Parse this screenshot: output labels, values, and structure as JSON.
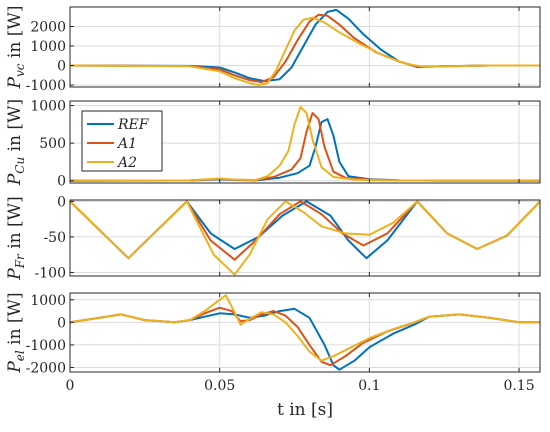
{
  "colors": {
    "REF": "#0072BD",
    "A1": "#D95319",
    "A2": "#EDB120"
  },
  "chart_data": {
    "type": "line",
    "grid": true,
    "shared_x": {
      "label": "t in [s]",
      "lim": [
        0,
        0.157
      ],
      "ticks": [
        0,
        0.05,
        0.1,
        0.15
      ],
      "tick_labels": [
        "0",
        "0.05",
        "0.1",
        "0.15"
      ]
    },
    "legend": {
      "panel": 1,
      "placement": "top-left",
      "entries": [
        "REF",
        "A1",
        "A2"
      ]
    },
    "panels": [
      {
        "ylabel": "P_vc in [W]",
        "ylim": [
          -1100,
          3000
        ],
        "yticks": [
          -1000,
          0,
          1000,
          2000
        ],
        "ytick_labels": [
          "-1000",
          "0",
          "1000",
          "2000"
        ],
        "series": [
          {
            "name": "REF",
            "x": [
              0,
              0.04,
              0.05,
              0.055,
              0.06,
              0.065,
              0.07,
              0.074,
              0.078,
              0.082,
              0.086,
              0.089,
              0.093,
              0.098,
              0.104,
              0.11,
              0.116,
              0.125,
              0.14,
              0.157
            ],
            "y": [
              0,
              -20,
              -100,
              -350,
              -650,
              -800,
              -700,
              -100,
              1000,
              2100,
              2750,
              2850,
              2400,
              1600,
              800,
              200,
              -80,
              -40,
              0,
              0
            ]
          },
          {
            "name": "A1",
            "x": [
              0,
              0.04,
              0.05,
              0.055,
              0.06,
              0.064,
              0.068,
              0.072,
              0.076,
              0.08,
              0.083,
              0.086,
              0.09,
              0.095,
              0.102,
              0.11,
              0.116,
              0.125,
              0.14,
              0.157
            ],
            "y": [
              0,
              -30,
              -200,
              -500,
              -750,
              -850,
              -600,
              200,
              1300,
              2250,
              2600,
              2550,
              2100,
              1400,
              700,
              200,
              -60,
              -40,
              0,
              0
            ]
          },
          {
            "name": "A2",
            "x": [
              0,
              0.04,
              0.05,
              0.055,
              0.06,
              0.063,
              0.066,
              0.069,
              0.072,
              0.075,
              0.078,
              0.081,
              0.085,
              0.09,
              0.097,
              0.105,
              0.112,
              0.118,
              0.128,
              0.14,
              0.157
            ],
            "y": [
              0,
              -40,
              -300,
              -650,
              -900,
              -1000,
              -900,
              -200,
              800,
              1800,
              2350,
              2450,
              2200,
              1700,
              1100,
              500,
              100,
              -60,
              -40,
              0,
              0
            ]
          }
        ]
      },
      {
        "ylabel": "P_Cu in [W]",
        "ylim": [
          -30,
          1060
        ],
        "yticks": [
          0,
          500,
          1000
        ],
        "ytick_labels": [
          "0",
          "500",
          "1000"
        ],
        "series": [
          {
            "name": "REF",
            "x": [
              0,
              0.04,
              0.05,
              0.055,
              0.062,
              0.07,
              0.076,
              0.08,
              0.082,
              0.084,
              0.086,
              0.088,
              0.09,
              0.093,
              0.1,
              0.11,
              0.125,
              0.157
            ],
            "y": [
              0,
              3,
              20,
              10,
              5,
              40,
              100,
              200,
              450,
              780,
              820,
              600,
              250,
              60,
              20,
              5,
              2,
              0
            ]
          },
          {
            "name": "A1",
            "x": [
              0,
              0.04,
              0.05,
              0.055,
              0.062,
              0.068,
              0.074,
              0.077,
              0.079,
              0.081,
              0.083,
              0.085,
              0.088,
              0.092,
              0.1,
              0.11,
              0.125,
              0.157
            ],
            "y": [
              0,
              4,
              25,
              12,
              8,
              50,
              150,
              300,
              650,
              900,
              820,
              450,
              120,
              40,
              15,
              5,
              2,
              0
            ]
          },
          {
            "name": "A2",
            "x": [
              0,
              0.04,
              0.05,
              0.055,
              0.062,
              0.066,
              0.07,
              0.073,
              0.075,
              0.077,
              0.079,
              0.081,
              0.084,
              0.088,
              0.095,
              0.105,
              0.125,
              0.157
            ],
            "y": [
              0,
              5,
              30,
              15,
              10,
              60,
              200,
              400,
              750,
              980,
              900,
              550,
              180,
              50,
              15,
              5,
              2,
              0
            ]
          }
        ]
      },
      {
        "ylabel": "P_Fr in [W]",
        "ylim": [
          -105,
          2
        ],
        "yticks": [
          -100,
          -50,
          0
        ],
        "ytick_labels": [
          "-100",
          "-50",
          "0"
        ],
        "series": [
          {
            "name": "REF",
            "x": [
              0,
              0.0195,
              0.039,
              0.047,
              0.055,
              0.063,
              0.071,
              0.079,
              0.087,
              0.093,
              0.099,
              0.106,
              0.116,
              0.126,
              0.136,
              0.146,
              0.157
            ],
            "y": [
              0,
              -80,
              0,
              -45,
              -67,
              -50,
              -20,
              0,
              -20,
              -55,
              -80,
              -55,
              0,
              -45,
              -67,
              -48,
              0
            ]
          },
          {
            "name": "A1",
            "x": [
              0,
              0.0195,
              0.039,
              0.047,
              0.055,
              0.062,
              0.07,
              0.077,
              0.084,
              0.091,
              0.098,
              0.106,
              0.116,
              0.126,
              0.136,
              0.146,
              0.157
            ],
            "y": [
              0,
              -80,
              0,
              -55,
              -82,
              -55,
              -18,
              0,
              -18,
              -45,
              -62,
              -45,
              0,
              -45,
              -67,
              -48,
              0
            ]
          },
          {
            "name": "A2",
            "x": [
              0,
              0.0195,
              0.039,
              0.048,
              0.055,
              0.06,
              0.066,
              0.072,
              0.078,
              0.084,
              0.092,
              0.1,
              0.108,
              0.116,
              0.126,
              0.136,
              0.146,
              0.157
            ],
            "y": [
              0,
              -80,
              0,
              -75,
              -103,
              -75,
              -25,
              0,
              -15,
              -35,
              -45,
              -47,
              -30,
              0,
              -45,
              -67,
              -48,
              0
            ]
          }
        ]
      },
      {
        "ylabel": "P_el in [W]",
        "ylim": [
          -2200,
          1300
        ],
        "yticks": [
          -2000,
          -1000,
          0,
          1000
        ],
        "ytick_labels": [
          "-2000",
          "-1000",
          "0",
          "1000"
        ],
        "series": [
          {
            "name": "REF",
            "x": [
              0,
              0.01,
              0.017,
              0.025,
              0.035,
              0.04,
              0.045,
              0.05,
              0.055,
              0.06,
              0.065,
              0.07,
              0.075,
              0.08,
              0.085,
              0.088,
              0.09,
              0.095,
              0.1,
              0.108,
              0.115,
              0.12,
              0.13,
              0.14,
              0.15,
              0.157
            ],
            "y": [
              0,
              200,
              350,
              100,
              0,
              100,
              250,
              400,
              350,
              200,
              300,
              500,
              600,
              200,
              -1000,
              -1900,
              -2100,
              -1700,
              -1100,
              -500,
              -100,
              250,
              350,
              200,
              0,
              0
            ]
          },
          {
            "name": "A1",
            "x": [
              0,
              0.01,
              0.017,
              0.025,
              0.035,
              0.04,
              0.045,
              0.05,
              0.054,
              0.057,
              0.06,
              0.064,
              0.068,
              0.072,
              0.076,
              0.08,
              0.084,
              0.087,
              0.092,
              0.098,
              0.106,
              0.114,
              0.12,
              0.13,
              0.14,
              0.15,
              0.157
            ],
            "y": [
              0,
              200,
              350,
              100,
              0,
              100,
              400,
              650,
              500,
              50,
              100,
              350,
              500,
              300,
              -200,
              -1000,
              -1750,
              -1900,
              -1500,
              -900,
              -400,
              -50,
              250,
              350,
              200,
              0,
              0
            ]
          },
          {
            "name": "A2",
            "x": [
              0,
              0.01,
              0.017,
              0.025,
              0.035,
              0.04,
              0.045,
              0.05,
              0.052,
              0.054,
              0.057,
              0.06,
              0.064,
              0.068,
              0.072,
              0.076,
              0.08,
              0.084,
              0.088,
              0.094,
              0.1,
              0.108,
              0.115,
              0.12,
              0.13,
              0.14,
              0.15,
              0.157
            ],
            "y": [
              0,
              200,
              350,
              100,
              0,
              100,
              500,
              1000,
              1200,
              700,
              -100,
              150,
              450,
              350,
              0,
              -600,
              -1300,
              -1700,
              -1500,
              -1100,
              -700,
              -300,
              0,
              250,
              350,
              200,
              0,
              0
            ]
          }
        ]
      }
    ]
  }
}
